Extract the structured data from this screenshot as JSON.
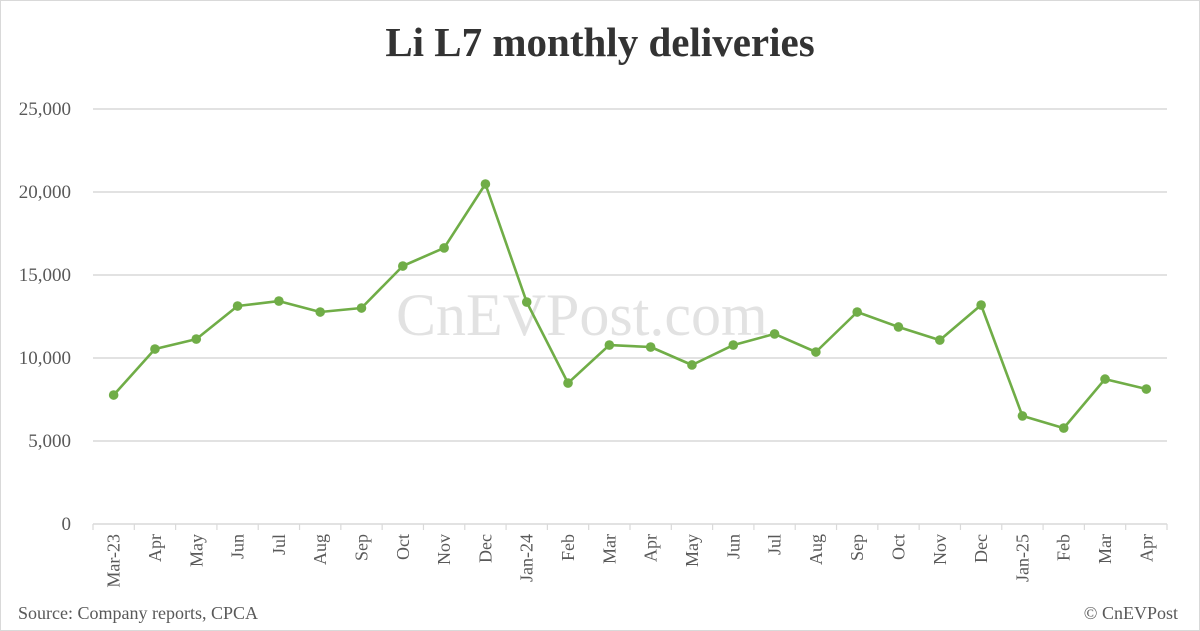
{
  "chart_data": {
    "type": "line",
    "title": "Li L7 monthly deliveries",
    "xlabel": "",
    "ylabel": "",
    "ylim": [
      0,
      25000
    ],
    "yticks": [
      0,
      5000,
      10000,
      15000,
      20000,
      25000
    ],
    "ytick_labels": [
      "0",
      "5,000",
      "10,000",
      "15,000",
      "20,000",
      "25,000"
    ],
    "grid": true,
    "legend": null,
    "categories": [
      "Mar-23",
      "Apr",
      "May",
      "Jun",
      "Jul",
      "Aug",
      "Sep",
      "Oct",
      "Nov",
      "Dec",
      "Jan-24",
      "Feb",
      "Mar",
      "Apr",
      "May",
      "Jun",
      "Jul",
      "Aug",
      "Sep",
      "Oct",
      "Nov",
      "Dec",
      "Jan-25",
      "Feb",
      "Mar",
      "Apr"
    ],
    "series": [
      {
        "name": "Li L7 deliveries",
        "color": "#70ad47",
        "values": [
          7770,
          10540,
          11140,
          13130,
          13430,
          12770,
          13010,
          15540,
          16630,
          20480,
          13370,
          8490,
          10780,
          10660,
          9580,
          10780,
          11450,
          10360,
          12770,
          11870,
          11080,
          13190,
          6510,
          5780,
          8730,
          8130
        ]
      }
    ]
  },
  "header": {
    "title": "Li L7 monthly deliveries"
  },
  "watermark": {
    "text": "CnEVPost.com"
  },
  "footer": {
    "source": "Source: Company reports, CPCA",
    "copyright": "© CnEVPost"
  },
  "colors": {
    "line": "#70ad47",
    "grid": "#d9d9d9",
    "text": "#595959",
    "title": "#333333"
  }
}
